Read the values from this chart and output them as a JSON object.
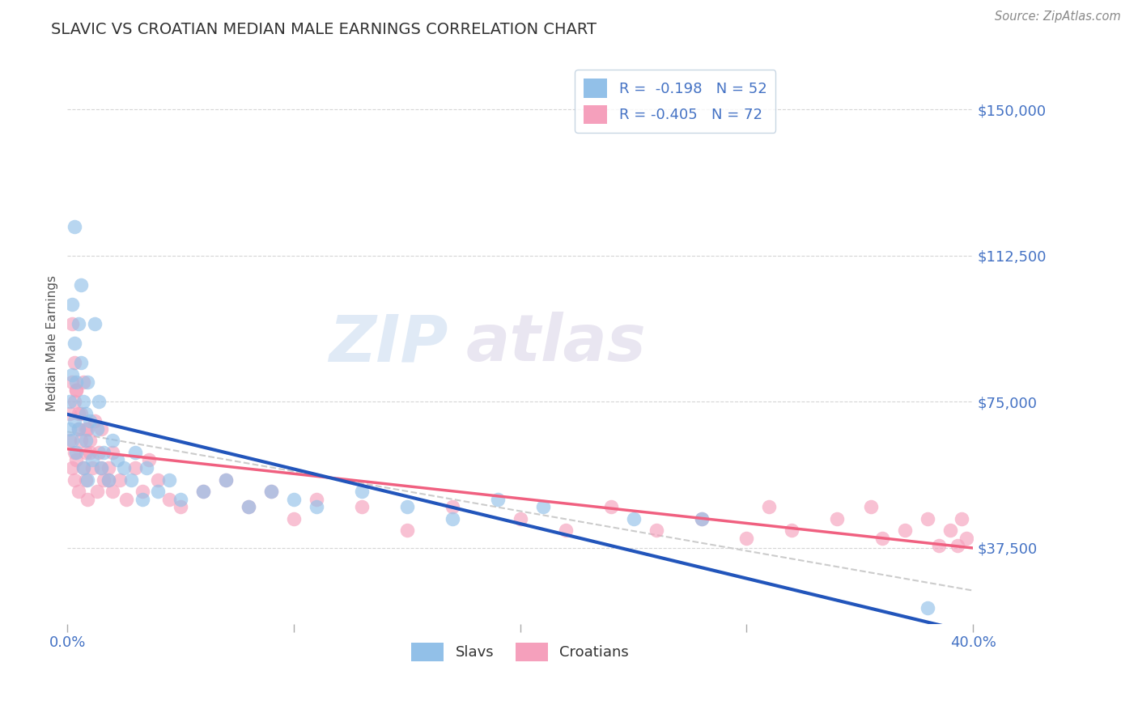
{
  "title": "SLAVIC VS CROATIAN MEDIAN MALE EARNINGS CORRELATION CHART",
  "source_text": "Source: ZipAtlas.com",
  "ylabel": "Median Male Earnings",
  "watermark_part1": "ZIP",
  "watermark_part2": "atlas",
  "xlim": [
    0.0,
    0.4
  ],
  "ylim": [
    18000,
    162000
  ],
  "yticks": [
    37500,
    75000,
    112500,
    150000
  ],
  "ytick_labels": [
    "$37,500",
    "$75,000",
    "$112,500",
    "$150,000"
  ],
  "xticks": [
    0.0,
    0.1,
    0.2,
    0.3,
    0.4
  ],
  "xtick_labels": [
    "0.0%",
    "",
    "",
    "",
    "40.0%"
  ],
  "legend_line1_R": "R =  -0.198",
  "legend_line1_N": "N = 52",
  "legend_line2_R": "R = -0.405",
  "legend_line2_N": "N = 72",
  "slav_color": "#92c0e8",
  "croatian_color": "#f5a0bc",
  "slav_line_color": "#2255bb",
  "croatian_line_color": "#f06080",
  "dash_line_color": "#cccccc",
  "background_color": "#ffffff",
  "title_color": "#333333",
  "axis_label_color": "#555555",
  "ytick_color": "#4472c4",
  "xtick_color": "#4472c4",
  "grid_color": "#cccccc",
  "legend_value_color": "#4472c4",
  "slav_legend_color": "#92c0e8",
  "croatian_legend_color": "#f5a0bc",
  "slavs_x": [
    0.001,
    0.001,
    0.002,
    0.002,
    0.002,
    0.003,
    0.003,
    0.003,
    0.004,
    0.004,
    0.005,
    0.005,
    0.006,
    0.006,
    0.007,
    0.007,
    0.008,
    0.008,
    0.009,
    0.009,
    0.01,
    0.011,
    0.012,
    0.013,
    0.014,
    0.015,
    0.016,
    0.018,
    0.02,
    0.022,
    0.025,
    0.028,
    0.03,
    0.033,
    0.035,
    0.04,
    0.045,
    0.05,
    0.06,
    0.07,
    0.08,
    0.09,
    0.1,
    0.11,
    0.13,
    0.15,
    0.17,
    0.19,
    0.21,
    0.25,
    0.28,
    0.38
  ],
  "slavs_y": [
    75000,
    68000,
    82000,
    65000,
    100000,
    90000,
    70000,
    120000,
    80000,
    62000,
    95000,
    68000,
    85000,
    105000,
    75000,
    58000,
    72000,
    65000,
    80000,
    55000,
    70000,
    60000,
    95000,
    68000,
    75000,
    58000,
    62000,
    55000,
    65000,
    60000,
    58000,
    55000,
    62000,
    50000,
    58000,
    52000,
    55000,
    50000,
    52000,
    55000,
    48000,
    52000,
    50000,
    48000,
    52000,
    48000,
    45000,
    50000,
    48000,
    45000,
    45000,
    22000
  ],
  "croatians_x": [
    0.001,
    0.001,
    0.002,
    0.002,
    0.002,
    0.003,
    0.003,
    0.003,
    0.004,
    0.004,
    0.005,
    0.005,
    0.006,
    0.006,
    0.007,
    0.007,
    0.008,
    0.008,
    0.009,
    0.009,
    0.01,
    0.011,
    0.012,
    0.013,
    0.014,
    0.015,
    0.016,
    0.018,
    0.02,
    0.023,
    0.026,
    0.03,
    0.033,
    0.036,
    0.04,
    0.045,
    0.05,
    0.06,
    0.07,
    0.08,
    0.09,
    0.1,
    0.11,
    0.13,
    0.15,
    0.17,
    0.2,
    0.22,
    0.24,
    0.26,
    0.28,
    0.3,
    0.31,
    0.32,
    0.34,
    0.355,
    0.36,
    0.37,
    0.38,
    0.385,
    0.39,
    0.393,
    0.395,
    0.397,
    0.003,
    0.004,
    0.005,
    0.008,
    0.01,
    0.015,
    0.018,
    0.02
  ],
  "croatians_y": [
    72000,
    65000,
    80000,
    58000,
    95000,
    75000,
    62000,
    55000,
    78000,
    60000,
    68000,
    52000,
    72000,
    65000,
    58000,
    80000,
    62000,
    55000,
    68000,
    50000,
    65000,
    58000,
    70000,
    52000,
    62000,
    68000,
    55000,
    58000,
    62000,
    55000,
    50000,
    58000,
    52000,
    60000,
    55000,
    50000,
    48000,
    52000,
    55000,
    48000,
    52000,
    45000,
    50000,
    48000,
    42000,
    48000,
    45000,
    42000,
    48000,
    42000,
    45000,
    40000,
    48000,
    42000,
    45000,
    48000,
    40000,
    42000,
    45000,
    38000,
    42000,
    38000,
    45000,
    40000,
    85000,
    78000,
    72000,
    68000,
    62000,
    58000,
    55000,
    52000
  ]
}
